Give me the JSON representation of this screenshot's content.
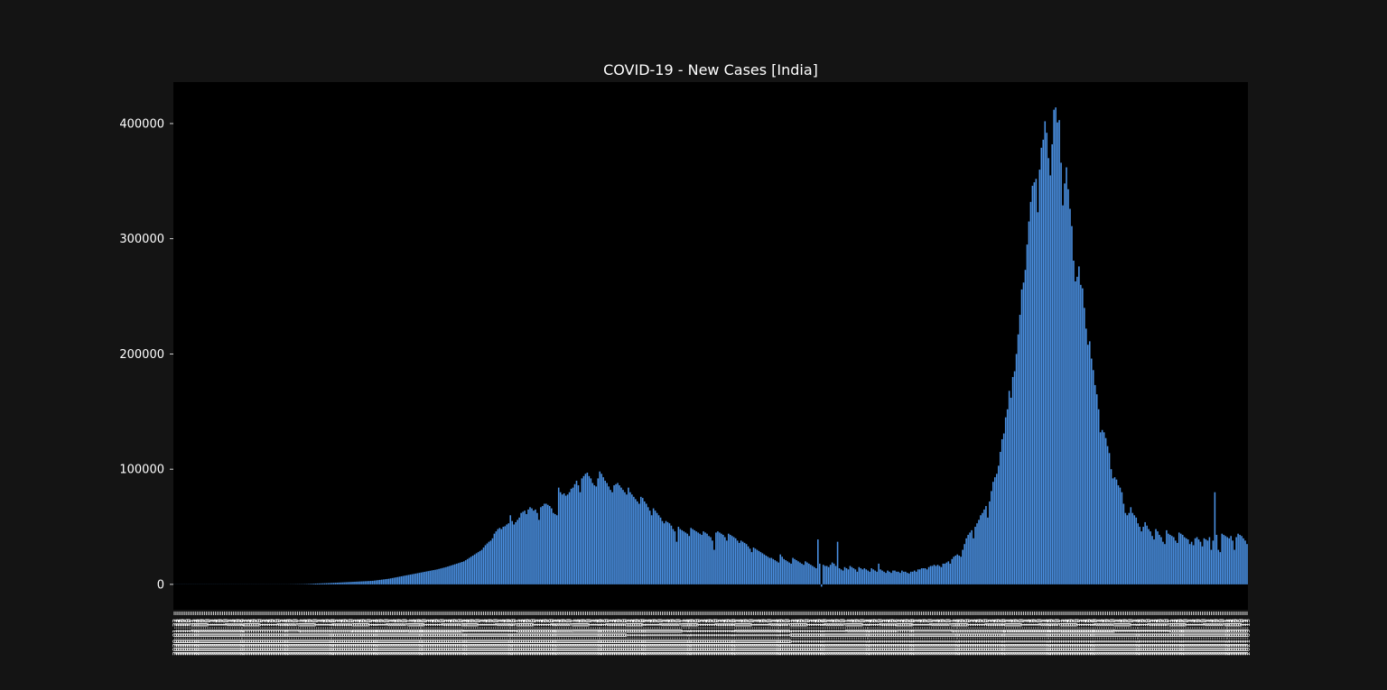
{
  "colors": {
    "figure_background": "#141414",
    "plot_background": "#000000",
    "bar": "#4a90e2",
    "text": "#ffffff"
  },
  "chart_data": {
    "type": "bar",
    "title": "COVID-19 - New Cases [India]",
    "xlabel": "",
    "ylabel": "",
    "ylim": [
      -22000,
      436000
    ],
    "yticks": [
      0,
      100000,
      200000,
      300000,
      400000
    ],
    "grid": false,
    "legend": "none",
    "x_tick_labels_note_free": true,
    "date_start": "2020-01-22",
    "date_end": "2021-08-15",
    "series": [
      {
        "values": [
          0,
          0,
          0,
          0,
          0,
          0,
          0,
          0,
          1,
          0,
          1,
          0,
          0,
          0,
          0,
          0,
          0,
          0,
          0,
          0,
          0,
          0,
          0,
          0,
          0,
          0,
          0,
          0,
          0,
          0,
          0,
          0,
          0,
          0,
          0,
          0,
          0,
          0,
          0,
          0,
          3,
          0,
          2,
          0,
          0,
          1,
          0,
          1,
          3,
          0,
          2,
          4,
          8,
          10,
          8,
          6,
          14,
          16,
          22,
          24,
          24,
          40,
          68,
          54,
          80,
          120,
          118,
          124,
          160,
          170,
          180,
          200,
          210,
          260,
          290,
          360,
          430,
          500,
          600,
          700,
          760,
          800,
          860,
          920,
          980,
          1040,
          1100,
          1180,
          1260,
          1340,
          1420,
          1500,
          1580,
          1660,
          1740,
          1820,
          1900,
          1980,
          2060,
          2140,
          2220,
          2300,
          2380,
          2460,
          2540,
          2620,
          2700,
          2780,
          2860,
          2940,
          3020,
          3100,
          3300,
          3500,
          3700,
          3900,
          4100,
          4300,
          4500,
          4700,
          4900,
          5200,
          5500,
          5800,
          6100,
          6400,
          6700,
          7000,
          7300,
          7600,
          7900,
          8200,
          8500,
          8800,
          9100,
          9400,
          9700,
          10000,
          10300,
          10600,
          10900,
          11200,
          11500,
          11800,
          12100,
          12400,
          12700,
          13000,
          13400,
          13800,
          14200,
          14600,
          15000,
          15500,
          16000,
          16500,
          17000,
          17500,
          18000,
          18500,
          19000,
          19500,
          20000,
          21000,
          22000,
          23000,
          24000,
          25000,
          26000,
          27000,
          28000,
          29000,
          30000,
          32000,
          34000,
          35500,
          37000,
          38000,
          40000,
          44000,
          46000,
          48000,
          49000,
          48000,
          50000,
          50500,
          52000,
          53000,
          60000,
          55000,
          52000,
          54000,
          56000,
          58000,
          62000,
          63000,
          64000,
          61000,
          65000,
          67000,
          66000,
          64000,
          65000,
          62000,
          56000,
          67000,
          68000,
          70000,
          70000,
          69000,
          68000,
          66000,
          62000,
          61000,
          60000,
          84000,
          80000,
          78000,
          79000,
          77000,
          78000,
          80000,
          83000,
          84000,
          87000,
          90000,
          86000,
          80000,
          92000,
          94000,
          96000,
          97000,
          94000,
          92000,
          88000,
          86000,
          85000,
          92000,
          98000,
          96000,
          93000,
          90000,
          88000,
          85000,
          82000,
          80000,
          86000,
          87000,
          88000,
          86000,
          84000,
          82000,
          80000,
          78000,
          84000,
          80000,
          78000,
          76000,
          74000,
          72000,
          70000,
          76000,
          75000,
          72000,
          70000,
          67000,
          64000,
          60000,
          66000,
          64000,
          62000,
          60000,
          58000,
          55000,
          53000,
          55000,
          54000,
          53000,
          51000,
          48000,
          46000,
          37000,
          50000,
          48000,
          47000,
          46000,
          45000,
          44000,
          42000,
          49000,
          48000,
          47000,
          46000,
          45000,
          44000,
          43000,
          46000,
          45000,
          44000,
          42000,
          41000,
          38000,
          30000,
          45000,
          46000,
          45000,
          44000,
          43000,
          41000,
          38000,
          44000,
          43000,
          42000,
          41000,
          40000,
          38000,
          36000,
          38000,
          37000,
          36000,
          35000,
          33000,
          31000,
          28000,
          32000,
          31000,
          30000,
          29000,
          28000,
          27000,
          26000,
          25000,
          24000,
          23000,
          23000,
          22000,
          21000,
          20000,
          19000,
          26000,
          24000,
          22000,
          21000,
          20000,
          19000,
          18000,
          23000,
          22000,
          21000,
          20000,
          19000,
          18000,
          17000,
          20000,
          19000,
          18000,
          17000,
          16000,
          15000,
          14000,
          39000,
          18000,
          -2000,
          17000,
          16000,
          16000,
          15000,
          17000,
          19000,
          18000,
          16000,
          37000,
          14000,
          13000,
          12000,
          15000,
          14000,
          13000,
          16000,
          15000,
          14000,
          13000,
          11000,
          15000,
          14000,
          13000,
          14000,
          13000,
          12000,
          11000,
          14000,
          13000,
          12000,
          11000,
          18000,
          13000,
          12000,
          11000,
          10000,
          12000,
          11000,
          10000,
          12000,
          12000,
          11000,
          11000,
          10000,
          12000,
          11000,
          11000,
          10000,
          9500,
          11000,
          11000,
          12000,
          11000,
          13000,
          13000,
          14000,
          14000,
          14000,
          13000,
          15000,
          16000,
          16000,
          17000,
          16000,
          17000,
          16000,
          15000,
          18000,
          18000,
          19000,
          20000,
          18000,
          22000,
          24000,
          25000,
          26000,
          25000,
          24000,
          30000,
          35000,
          40000,
          43000,
          45000,
          47000,
          40000,
          50000,
          53000,
          56000,
          60000,
          62000,
          65000,
          68000,
          58000,
          72000,
          81000,
          89000,
          93000,
          96000,
          103000,
          115000,
          126000,
          131000,
          145000,
          152000,
          168000,
          162000,
          180000,
          185000,
          200000,
          217000,
          234000,
          256000,
          262000,
          273000,
          295000,
          315000,
          332000,
          346000,
          349000,
          352000,
          323000,
          360000,
          379000,
          386000,
          402000,
          392000,
          370000,
          355000,
          382000,
          412000,
          414000,
          401000,
          403000,
          366000,
          329000,
          348000,
          362000,
          343000,
          326000,
          311000,
          281000,
          263000,
          267000,
          276000,
          260000,
          257000,
          240000,
          222000,
          208000,
          211000,
          196000,
          186000,
          173000,
          165000,
          152000,
          132000,
          134000,
          132000,
          127000,
          120000,
          114000,
          100000,
          92000,
          93000,
          91000,
          86000,
          84000,
          80000,
          70000,
          62000,
          60000,
          62000,
          67000,
          62000,
          60000,
          58000,
          53000,
          50000,
          46000,
          50000,
          54000,
          51000,
          48000,
          46000,
          42000,
          39000,
          48000,
          46000,
          43000,
          41000,
          37000,
          35000,
          47000,
          44000,
          43000,
          42000,
          41000,
          38000,
          36000,
          45000,
          44000,
          43000,
          41000,
          40000,
          39000,
          35000,
          37000,
          34000,
          40000,
          41000,
          39000,
          37000,
          33000,
          40000,
          39000,
          38000,
          41000,
          30000,
          38000,
          80000,
          43000,
          30000,
          28000,
          44000,
          43000,
          42000,
          41000,
          40000,
          42000,
          38000,
          30000,
          41000,
          44000,
          43000,
          42000,
          40000,
          38000,
          35000
        ]
      }
    ]
  }
}
